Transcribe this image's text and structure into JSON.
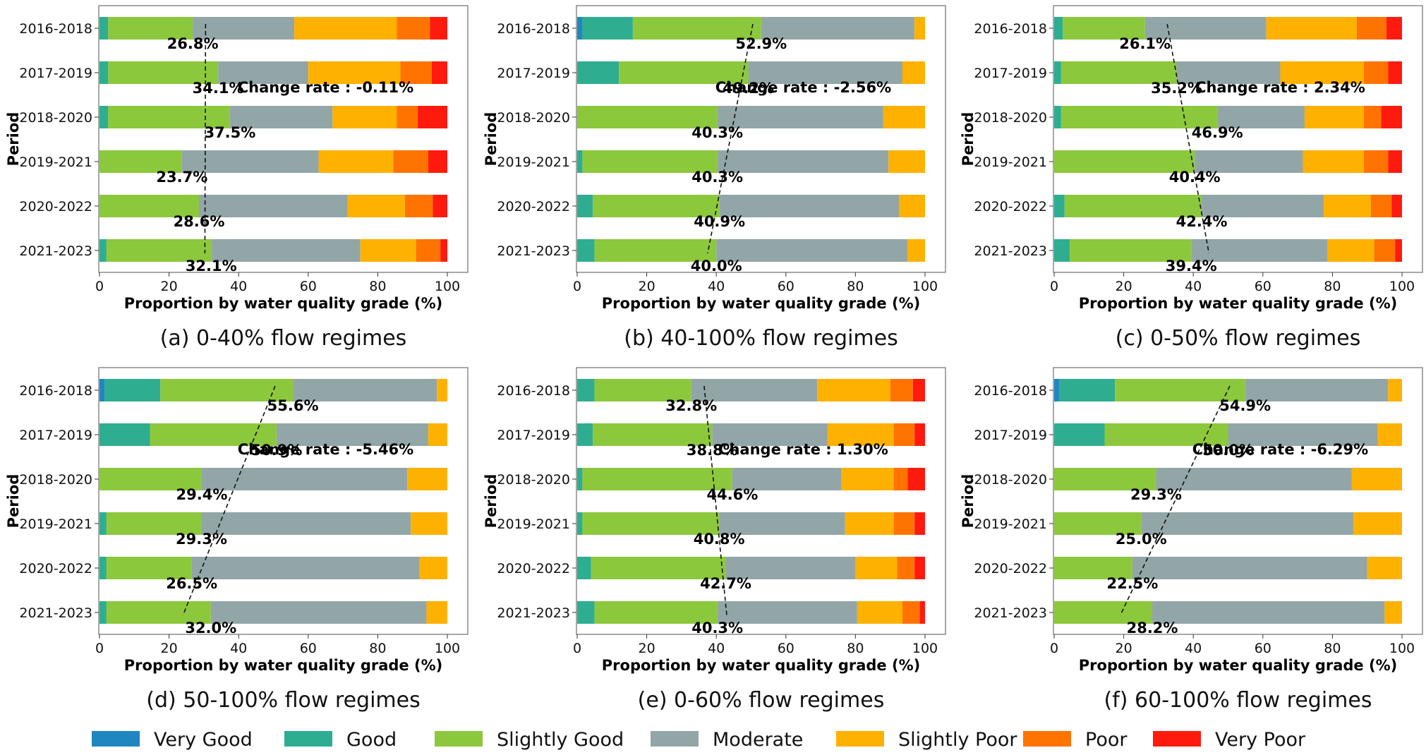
{
  "legend": [
    {
      "name": "Very Good",
      "color": "#1f87c0"
    },
    {
      "name": "Good",
      "color": "#2fad90"
    },
    {
      "name": "Slightly Good",
      "color": "#8cc83c"
    },
    {
      "name": "Moderate",
      "color": "#92a6a8"
    },
    {
      "name": "Slightly Poor",
      "color": "#ffb100"
    },
    {
      "name": "Poor",
      "color": "#ff7300"
    },
    {
      "name": "Very Poor",
      "color": "#ff1a0e"
    }
  ],
  "chart_data": [
    {
      "type": "bar",
      "stacked": true,
      "orientation": "horizontal",
      "caption": "(a) 0-40% flow regimes",
      "xlabel": "Proportion by water quality grade (%)",
      "ylabel": "Period",
      "xlim": [
        0,
        100
      ],
      "xticks": [
        "0",
        "20",
        "40",
        "60",
        "80",
        "100"
      ],
      "categories": [
        "2016-2018",
        "2017-2019",
        "2018-2020",
        "2019-2021",
        "2020-2022",
        "2021-2023"
      ],
      "series": [
        {
          "name": "Very Good",
          "values": [
            0,
            0,
            0,
            0,
            0,
            0
          ]
        },
        {
          "name": "Good",
          "values": [
            2.5,
            2.5,
            2.5,
            0,
            0,
            2
          ]
        },
        {
          "name": "Slightly Good",
          "values": [
            24.3,
            31.6,
            35,
            23.7,
            28.6,
            30.1
          ]
        },
        {
          "name": "Moderate",
          "values": [
            29.2,
            25.9,
            29.5,
            39.3,
            42.7,
            42.9
          ]
        },
        {
          "name": "Slightly Poor",
          "values": [
            29.5,
            26.5,
            18.5,
            21.5,
            16.5,
            16
          ]
        },
        {
          "name": "Poor",
          "values": [
            9.5,
            9,
            6,
            10,
            8,
            7
          ]
        },
        {
          "name": "Very Poor",
          "values": [
            5,
            4.5,
            8.5,
            5.5,
            4.2,
            2
          ]
        }
      ],
      "labels": [
        "26.8%",
        "34.1%",
        "37.5%",
        "23.7%",
        "28.6%",
        "32.1%"
      ],
      "annotation": "Change rate : -0.11%",
      "trend": {
        "top": 30.5,
        "bottom": 30.3
      }
    },
    {
      "type": "bar",
      "stacked": true,
      "orientation": "horizontal",
      "caption": "(b) 40-100% flow regimes",
      "xlabel": "Proportion by water quality grade (%)",
      "ylabel": "Period",
      "xlim": [
        0,
        100
      ],
      "xticks": [
        "0",
        "20",
        "40",
        "60",
        "80",
        "100"
      ],
      "categories": [
        "2016-2018",
        "2017-2019",
        "2018-2020",
        "2019-2021",
        "2020-2022",
        "2021-2023"
      ],
      "series": [
        {
          "name": "Very Good",
          "values": [
            1.5,
            0,
            0,
            0,
            0,
            0
          ]
        },
        {
          "name": "Good",
          "values": [
            14.5,
            12,
            0,
            1.5,
            4.5,
            5
          ]
        },
        {
          "name": "Slightly Good",
          "values": [
            36.9,
            37.2,
            40.3,
            38.8,
            36.4,
            35
          ]
        },
        {
          "name": "Moderate",
          "values": [
            44.1,
            44.3,
            47.7,
            49.2,
            51.6,
            55
          ]
        },
        {
          "name": "Slightly Poor",
          "values": [
            3,
            6.5,
            12,
            10.5,
            7.5,
            5
          ]
        },
        {
          "name": "Poor",
          "values": [
            0,
            0,
            0,
            0,
            0,
            0
          ]
        },
        {
          "name": "Very Poor",
          "values": [
            0,
            0,
            0,
            0,
            0,
            0
          ]
        }
      ],
      "labels": [
        "52.9%",
        "49.2%",
        "40.3%",
        "40.3%",
        "40.9%",
        "40.0%"
      ],
      "annotation": "Change rate : -2.56%",
      "trend": {
        "top": 50.5,
        "bottom": 37.5
      }
    },
    {
      "type": "bar",
      "stacked": true,
      "orientation": "horizontal",
      "caption": "(c) 0-50% flow regimes",
      "xlabel": "Proportion by water quality grade (%)",
      "ylabel": "Period",
      "xlim": [
        0,
        100
      ],
      "xticks": [
        "0",
        "20",
        "40",
        "60",
        "80",
        "100"
      ],
      "categories": [
        "2016-2018",
        "2017-2019",
        "2018-2020",
        "2019-2021",
        "2020-2022",
        "2021-2023"
      ],
      "series": [
        {
          "name": "Very Good",
          "values": [
            0,
            0,
            0,
            0,
            0,
            0
          ]
        },
        {
          "name": "Good",
          "values": [
            2.5,
            2,
            2,
            0,
            3,
            4.5
          ]
        },
        {
          "name": "Slightly Good",
          "values": [
            23.6,
            33.2,
            44.9,
            40.4,
            39.4,
            34.9
          ]
        },
        {
          "name": "Moderate",
          "values": [
            34.9,
            29.8,
            25.1,
            31.1,
            35.1,
            39.1
          ]
        },
        {
          "name": "Slightly Poor",
          "values": [
            26,
            24,
            17,
            17.5,
            13.5,
            13.5
          ]
        },
        {
          "name": "Poor",
          "values": [
            8.5,
            7,
            5,
            7,
            6,
            6
          ]
        },
        {
          "name": "Very Poor",
          "values": [
            4.5,
            4,
            6,
            4,
            3,
            2
          ]
        }
      ],
      "labels": [
        "26.1%",
        "35.2%",
        "46.9%",
        "40.4%",
        "42.4%",
        "39.4%"
      ],
      "annotation": "Change rate : 2.34%",
      "trend": {
        "top": 32.5,
        "bottom": 44.5
      }
    },
    {
      "type": "bar",
      "stacked": true,
      "orientation": "horizontal",
      "caption": "(d) 50-100% flow regimes",
      "xlabel": "Proportion by water quality grade (%)",
      "ylabel": "Period",
      "xlim": [
        0,
        100
      ],
      "xticks": [
        "0",
        "20",
        "40",
        "60",
        "80",
        "100"
      ],
      "categories": [
        "2016-2018",
        "2017-2019",
        "2018-2020",
        "2019-2021",
        "2020-2022",
        "2021-2023"
      ],
      "series": [
        {
          "name": "Very Good",
          "values": [
            1.5,
            0,
            0,
            0,
            0,
            0
          ]
        },
        {
          "name": "Good",
          "values": [
            16,
            14.5,
            0,
            2,
            2,
            2
          ]
        },
        {
          "name": "Slightly Good",
          "values": [
            38.1,
            36.4,
            29.4,
            27.3,
            24.5,
            30
          ]
        },
        {
          "name": "Moderate",
          "values": [
            41.4,
            43.6,
            59.1,
            60.2,
            65.5,
            62
          ]
        },
        {
          "name": "Slightly Poor",
          "values": [
            3,
            5.5,
            11.5,
            10.5,
            8,
            6
          ]
        },
        {
          "name": "Poor",
          "values": [
            0,
            0,
            0,
            0,
            0,
            0
          ]
        },
        {
          "name": "Very Poor",
          "values": [
            0,
            0,
            0,
            0,
            0,
            0
          ]
        }
      ],
      "labels": [
        "55.6%",
        "50.9%",
        "29.4%",
        "29.3%",
        "26.5%",
        "32.0%"
      ],
      "annotation": "Change rate : -5.46%",
      "trend": {
        "top": 50.5,
        "bottom": 24
      }
    },
    {
      "type": "bar",
      "stacked": true,
      "orientation": "horizontal",
      "caption": "(e) 0-60% flow regimes",
      "xlabel": "Proportion by water quality grade (%)",
      "ylabel": "Period",
      "xlim": [
        0,
        100
      ],
      "xticks": [
        "0",
        "20",
        "40",
        "60",
        "80",
        "100"
      ],
      "categories": [
        "2016-2018",
        "2017-2019",
        "2018-2020",
        "2019-2021",
        "2020-2022",
        "2021-2023"
      ],
      "series": [
        {
          "name": "Very Good",
          "values": [
            0,
            0,
            0,
            0,
            0,
            0
          ]
        },
        {
          "name": "Good",
          "values": [
            5,
            4.5,
            1.5,
            1.5,
            4,
            5
          ]
        },
        {
          "name": "Slightly Good",
          "values": [
            27.8,
            34.3,
            43.1,
            39.3,
            38.7,
            35.3
          ]
        },
        {
          "name": "Moderate",
          "values": [
            36.2,
            33.2,
            31.4,
            36.2,
            37.3,
            40.2
          ]
        },
        {
          "name": "Slightly Poor",
          "values": [
            21,
            19,
            15,
            14,
            12,
            13
          ]
        },
        {
          "name": "Poor",
          "values": [
            6.5,
            6,
            4,
            6,
            5,
            5
          ]
        },
        {
          "name": "Very Poor",
          "values": [
            3.5,
            3,
            5,
            3,
            3,
            1.5
          ]
        }
      ],
      "labels": [
        "32.8%",
        "38.8%",
        "44.6%",
        "40.8%",
        "42.7%",
        "40.3%"
      ],
      "annotation": "Change rate : 1.30%",
      "trend": {
        "top": 36.5,
        "bottom": 43
      }
    },
    {
      "type": "bar",
      "stacked": true,
      "orientation": "horizontal",
      "caption": "(f) 60-100% flow regimes",
      "xlabel": "Proportion by water quality grade (%)",
      "ylabel": "Period",
      "xlim": [
        0,
        100
      ],
      "xticks": [
        "0",
        "20",
        "40",
        "60",
        "80",
        "100"
      ],
      "categories": [
        "2016-2018",
        "2017-2019",
        "2018-2020",
        "2019-2021",
        "2020-2022",
        "2021-2023"
      ],
      "series": [
        {
          "name": "Very Good",
          "values": [
            1.5,
            0,
            0,
            0,
            0,
            0
          ]
        },
        {
          "name": "Good",
          "values": [
            16,
            14.5,
            0,
            0,
            0,
            0
          ]
        },
        {
          "name": "Slightly Good",
          "values": [
            37.4,
            35.5,
            29.3,
            25,
            22.5,
            28.2
          ]
        },
        {
          "name": "Moderate",
          "values": [
            41.1,
            43,
            56.2,
            61,
            67.5,
            66.8
          ]
        },
        {
          "name": "Slightly Poor",
          "values": [
            4,
            7,
            14.5,
            14,
            10,
            5
          ]
        },
        {
          "name": "Poor",
          "values": [
            0,
            0,
            0,
            0,
            0,
            0
          ]
        },
        {
          "name": "Very Poor",
          "values": [
            0,
            0,
            0,
            0,
            0,
            0
          ]
        }
      ],
      "labels": [
        "54.9%",
        "50.0%",
        "29.3%",
        "25.0%",
        "22.5%",
        "28.2%"
      ],
      "annotation": "Change rate : -6.29%",
      "trend": {
        "top": 50.5,
        "bottom": 19
      }
    }
  ]
}
